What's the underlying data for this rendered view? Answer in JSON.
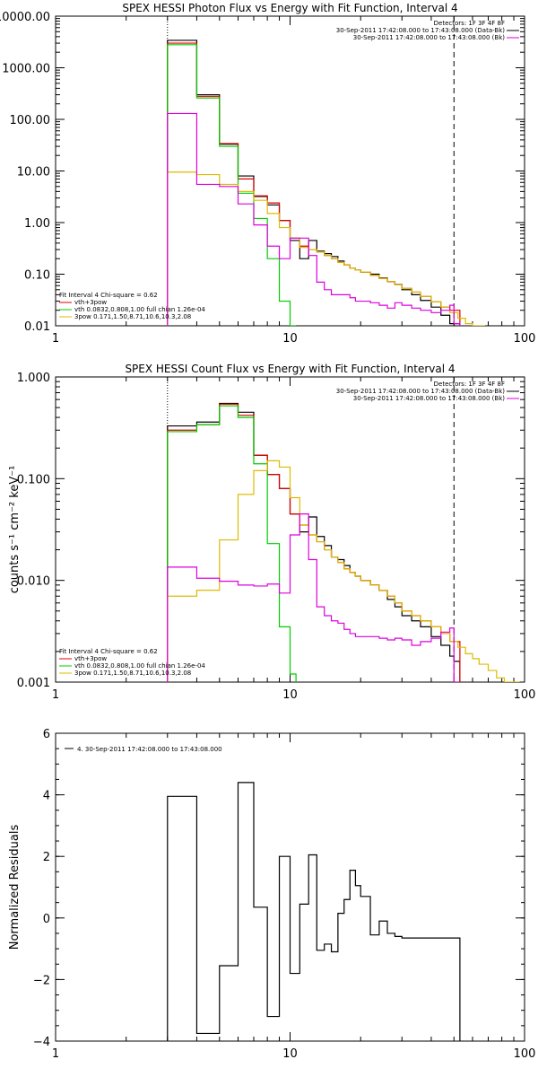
{
  "chart_data": [
    {
      "type": "line",
      "title": "SPEX HESSI Photon Flux vs Energy with Fit Function, Interval 4",
      "xscale": "log",
      "yscale": "log",
      "xlim": [
        1,
        100
      ],
      "ylim": [
        0.01,
        10000
      ],
      "x_ticks": [
        {
          "v": 1,
          "label": "1"
        },
        {
          "v": 10,
          "label": "10"
        },
        {
          "v": 100,
          "label": "100"
        }
      ],
      "y_ticks": [
        {
          "v": 0.01,
          "label": "0.01"
        },
        {
          "v": 0.1,
          "label": "0.10"
        },
        {
          "v": 1,
          "label": "1.00"
        },
        {
          "v": 10,
          "label": "10.00"
        },
        {
          "v": 100,
          "label": "100.00"
        },
        {
          "v": 1000,
          "label": "1000.00"
        },
        {
          "v": 10000,
          "label": "10000.00"
        }
      ],
      "vlines": [
        {
          "x": 3,
          "style": "dotted"
        },
        {
          "x": 50,
          "style": "dashed"
        }
      ],
      "top_legend": {
        "placement": "top-right",
        "entries": [
          {
            "text": "Detectors: 1F 3F 4F 8F",
            "color": "#000000"
          },
          {
            "text": "30-Sep-2011 17:42:08.000 to 17:43:08.000 (Data-Bk)",
            "color": "#000000"
          },
          {
            "text": "30-Sep-2011 17:42:08.000 to 17:43:08.000 (Bk)",
            "color": "#dd00dd"
          }
        ]
      },
      "bottom_legend": {
        "placement": "bottom-left",
        "entries": [
          {
            "text": "Fit Interval  4    Chi-square = 0.62",
            "color": "#000000"
          },
          {
            "text": "vth+3pow",
            "color": "#dd0000"
          },
          {
            "text": "vth 0.0832,0.808,1.00  full chian 1.26e-04",
            "color": "#00cc00"
          },
          {
            "text": "3pow 0.171,1.50,8.71,10.6,10.3,2.08",
            "color": "#ddbb00"
          }
        ]
      },
      "series": [
        {
          "name": "Data-Bk",
          "color": "#000000",
          "x": [
            3,
            4,
            5,
            6,
            7,
            8,
            9,
            10,
            11,
            12,
            13,
            14,
            15,
            16,
            17,
            18,
            19,
            20,
            22,
            24,
            26,
            28,
            30,
            33,
            36,
            40,
            44,
            48,
            50
          ],
          "values": [
            3400,
            300,
            33,
            8,
            3.2,
            2.2,
            1.1,
            0.45,
            0.2,
            0.45,
            0.28,
            0.25,
            0.22,
            0.18,
            0.15,
            0.13,
            0.12,
            0.11,
            0.1,
            0.085,
            0.072,
            0.063,
            0.05,
            0.04,
            0.031,
            0.023,
            0.016,
            0.011,
            0.011
          ]
        },
        {
          "name": "vth+3pow",
          "color": "#dd0000",
          "x": [
            3,
            4,
            5,
            6,
            7,
            8,
            9,
            10,
            11,
            12,
            13,
            14,
            15,
            16,
            17,
            18,
            19,
            20,
            22,
            24,
            26,
            28,
            30,
            33,
            36,
            40,
            44,
            48,
            50
          ],
          "values": [
            3000,
            280,
            34,
            7,
            3.3,
            2.4,
            1.1,
            0.5,
            0.35,
            0.3,
            0.27,
            0.23,
            0.2,
            0.17,
            0.15,
            0.13,
            0.12,
            0.11,
            0.095,
            0.083,
            0.072,
            0.062,
            0.053,
            0.045,
            0.037,
            0.029,
            0.023,
            0.02,
            0.02
          ]
        },
        {
          "name": "vth",
          "color": "#00cc00",
          "x": [
            3,
            4,
            5,
            6,
            7,
            8,
            9,
            10
          ],
          "values": [
            2800,
            260,
            30,
            3.7,
            1.2,
            0.2,
            0.03,
            0.01
          ]
        },
        {
          "name": "3pow",
          "color": "#ddbb00",
          "x": [
            3,
            4,
            5,
            6,
            7,
            8,
            9,
            10,
            11,
            12,
            13,
            14,
            15,
            16,
            17,
            18,
            19,
            20,
            22,
            24,
            26,
            28,
            30,
            33,
            36,
            40,
            44,
            48,
            52,
            56,
            60,
            64
          ],
          "values": [
            9.5,
            8.5,
            5.5,
            4.0,
            2.7,
            1.5,
            0.8,
            0.5,
            0.33,
            0.3,
            0.27,
            0.23,
            0.2,
            0.17,
            0.15,
            0.13,
            0.12,
            0.11,
            0.095,
            0.083,
            0.072,
            0.062,
            0.053,
            0.045,
            0.037,
            0.029,
            0.023,
            0.018,
            0.014,
            0.011,
            0.009,
            0.008
          ]
        },
        {
          "name": "Bk",
          "color": "#dd00dd",
          "x": [
            3,
            4,
            5,
            6,
            7,
            8,
            9,
            10,
            11,
            12,
            13,
            14,
            15,
            16,
            17,
            18,
            19,
            20,
            22,
            24,
            26,
            28,
            30,
            33,
            36,
            40,
            44,
            48,
            50
          ],
          "values": [
            130,
            5.5,
            5,
            2.3,
            0.9,
            0.35,
            0.2,
            0.5,
            0.5,
            0.23,
            0.07,
            0.05,
            0.04,
            0.04,
            0.04,
            0.035,
            0.03,
            0.03,
            0.028,
            0.025,
            0.022,
            0.028,
            0.025,
            0.022,
            0.02,
            0.018,
            0.02,
            0.025,
            0.011
          ]
        }
      ]
    },
    {
      "type": "line",
      "title": "SPEX HESSI Count Flux vs Energy with Fit Function, Interval 4",
      "ylabel": "counts s⁻¹ cm⁻² keV⁻¹",
      "xscale": "log",
      "yscale": "log",
      "xlim": [
        1,
        100
      ],
      "ylim": [
        0.001,
        1
      ],
      "x_ticks": [
        {
          "v": 1,
          "label": "1"
        },
        {
          "v": 10,
          "label": "10"
        },
        {
          "v": 100,
          "label": "100"
        }
      ],
      "y_ticks": [
        {
          "v": 0.001,
          "label": "0.001"
        },
        {
          "v": 0.01,
          "label": "0.010"
        },
        {
          "v": 0.1,
          "label": "0.100"
        },
        {
          "v": 1,
          "label": "1.000"
        }
      ],
      "vlines": [
        {
          "x": 3,
          "style": "dotted"
        },
        {
          "x": 50,
          "style": "dashed"
        }
      ],
      "top_legend": {
        "placement": "top-right",
        "entries": [
          {
            "text": "Detectors: 1F 3F 4F 8F",
            "color": "#000000"
          },
          {
            "text": "30-Sep-2011 17:42:08.000 to 17:43:08.000 (Data-Bk)",
            "color": "#000000"
          },
          {
            "text": "30-Sep-2011 17:42:08.000 to 17:43:08.000 (Bk)",
            "color": "#dd00dd"
          }
        ]
      },
      "bottom_legend": {
        "placement": "bottom-left",
        "entries": [
          {
            "text": "Fit Interval  4    Chi-square = 0.62",
            "color": "#000000"
          },
          {
            "text": "vth+3pow",
            "color": "#dd0000"
          },
          {
            "text": "vth 0.0832,0.808,1.00  full chian 1.26e-04",
            "color": "#00cc00"
          },
          {
            "text": "3pow 0.171,1.50,8.71,10.6,10.3,2.08",
            "color": "#ddbb00"
          }
        ]
      },
      "series": [
        {
          "name": "Data-Bk",
          "color": "#000000",
          "x": [
            3,
            4,
            5,
            6,
            7,
            8,
            9,
            10,
            11,
            12,
            13,
            14,
            15,
            16,
            17,
            18,
            19,
            20,
            22,
            24,
            26,
            28,
            30,
            33,
            36,
            40,
            44,
            48,
            50
          ],
          "values": [
            0.33,
            0.36,
            0.55,
            0.45,
            0.17,
            0.11,
            0.08,
            0.045,
            0.03,
            0.042,
            0.027,
            0.022,
            0.017,
            0.016,
            0.014,
            0.012,
            0.011,
            0.01,
            0.009,
            0.008,
            0.0065,
            0.0055,
            0.0045,
            0.004,
            0.0035,
            0.0028,
            0.0023,
            0.0018,
            0.0016
          ]
        },
        {
          "name": "vth+3pow",
          "color": "#dd0000",
          "x": [
            3,
            4,
            5,
            6,
            7,
            8,
            9,
            10,
            11,
            12,
            13,
            14,
            15,
            16,
            17,
            18,
            19,
            20,
            22,
            24,
            26,
            28,
            30,
            33,
            36,
            40,
            44,
            48,
            50
          ],
          "values": [
            0.3,
            0.34,
            0.54,
            0.42,
            0.17,
            0.11,
            0.08,
            0.045,
            0.035,
            0.028,
            0.024,
            0.02,
            0.017,
            0.015,
            0.013,
            0.012,
            0.011,
            0.01,
            0.009,
            0.008,
            0.007,
            0.006,
            0.005,
            0.0045,
            0.004,
            0.0035,
            0.003,
            0.0025,
            0.0025
          ]
        },
        {
          "name": "vth",
          "color": "#00cc00",
          "x": [
            3,
            4,
            5,
            6,
            7,
            8,
            9,
            10
          ],
          "values": [
            0.29,
            0.34,
            0.52,
            0.4,
            0.14,
            0.023,
            0.0035,
            0.0012
          ]
        },
        {
          "name": "3pow",
          "color": "#ddbb00",
          "x": [
            3,
            4,
            5,
            6,
            7,
            8,
            9,
            10,
            11,
            12,
            13,
            14,
            15,
            16,
            17,
            18,
            19,
            20,
            22,
            24,
            26,
            28,
            30,
            33,
            36,
            40,
            44,
            48,
            52,
            56,
            60,
            64,
            70,
            76,
            82,
            90
          ],
          "values": [
            0.007,
            0.008,
            0.025,
            0.07,
            0.12,
            0.15,
            0.13,
            0.065,
            0.035,
            0.028,
            0.024,
            0.02,
            0.017,
            0.015,
            0.013,
            0.012,
            0.011,
            0.01,
            0.009,
            0.008,
            0.007,
            0.006,
            0.005,
            0.0045,
            0.004,
            0.0035,
            0.003,
            0.0025,
            0.0022,
            0.0019,
            0.0017,
            0.0015,
            0.0013,
            0.0011,
            0.001,
            0.0009
          ]
        },
        {
          "name": "Bk",
          "color": "#dd00dd",
          "x": [
            3,
            4,
            5,
            6,
            7,
            8,
            9,
            10,
            11,
            12,
            13,
            14,
            15,
            16,
            17,
            18,
            19,
            20,
            22,
            24,
            26,
            28,
            30,
            33,
            36,
            40,
            44,
            48,
            50
          ],
          "values": [
            0.0135,
            0.0105,
            0.0098,
            0.009,
            0.0088,
            0.0092,
            0.0075,
            0.028,
            0.045,
            0.016,
            0.0055,
            0.0045,
            0.004,
            0.0038,
            0.0033,
            0.003,
            0.0028,
            0.0028,
            0.0028,
            0.0027,
            0.0026,
            0.0027,
            0.0026,
            0.0023,
            0.0025,
            0.0027,
            0.0031,
            0.0034,
            0.0009
          ]
        }
      ]
    },
    {
      "type": "line",
      "ylabel": "Normalized Residuals",
      "xscale": "log",
      "yscale": "linear",
      "xlim": [
        1,
        100
      ],
      "ylim": [
        -4,
        6
      ],
      "x_ticks": [
        {
          "v": 1,
          "label": "1"
        },
        {
          "v": 10,
          "label": "10"
        },
        {
          "v": 100,
          "label": "100"
        }
      ],
      "y_ticks": [
        {
          "v": -4,
          "label": "−4"
        },
        {
          "v": -2,
          "label": "−2"
        },
        {
          "v": 0,
          "label": "0"
        },
        {
          "v": 2,
          "label": "2"
        },
        {
          "v": 4,
          "label": "4"
        },
        {
          "v": 6,
          "label": "6"
        }
      ],
      "legend": {
        "placement": "top-left",
        "entries": [
          {
            "text": "4. 30-Sep-2011 17:42:08.000 to 17:43:08.000",
            "color": "#000000"
          }
        ]
      },
      "series": [
        {
          "name": "4. 30-Sep-2011 17:42:08.000 to 17:43:08.000",
          "color": "#000000",
          "x": [
            3,
            4,
            5,
            6,
            7,
            8,
            9,
            10,
            11,
            12,
            13,
            14,
            15,
            16,
            17,
            18,
            19,
            20,
            22,
            24,
            26,
            28,
            30,
            33,
            36,
            40,
            44,
            48,
            50
          ],
          "values": [
            3.95,
            -3.75,
            -1.55,
            4.4,
            0.35,
            -3.2,
            2.0,
            -1.8,
            0.45,
            2.05,
            -1.05,
            -0.85,
            -1.1,
            0.15,
            0.6,
            1.55,
            1.05,
            0.7,
            -0.55,
            -0.1,
            -0.5,
            -0.6,
            -0.65,
            -0.65,
            -0.65,
            -0.65,
            -0.65,
            -0.65,
            -0.65
          ]
        }
      ]
    }
  ]
}
